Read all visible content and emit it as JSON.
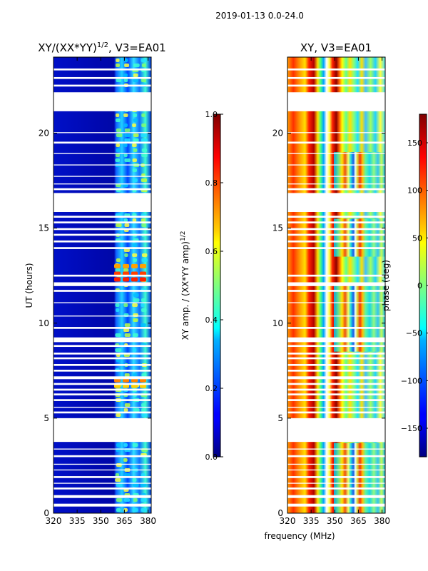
{
  "figure": {
    "suptitle": "2019-01-13 0.0-24.0",
    "shared_xlabel": "frequency (MHz)"
  },
  "chart_data": [
    {
      "type": "heatmap",
      "title": "XY/(XX*YY)",
      "title_sup": "1/2",
      "title_suffix": ", V3=EA01",
      "ylabel": "UT (hours)",
      "xlim": [
        320,
        382
      ],
      "ylim": [
        0,
        24
      ],
      "xticks": [
        "320",
        "335",
        "350",
        "365",
        "380"
      ],
      "yticks": [
        "0",
        "5",
        "10",
        "15",
        "20"
      ],
      "colorbar": {
        "label": "XY amp. / (XX*YY amp)",
        "label_sup": "1/2",
        "range": [
          0.0,
          1.0
        ],
        "ticks": [
          "0.0",
          "0.2",
          "0.4",
          "0.6",
          "0.8",
          "1.0"
        ]
      }
    },
    {
      "type": "heatmap",
      "title": "XY, V3=EA01",
      "ylabel": "",
      "xlim": [
        320,
        382
      ],
      "ylim": [
        0,
        24
      ],
      "xticks": [
        "320",
        "335",
        "350",
        "365",
        "380"
      ],
      "yticks": [
        "0",
        "5",
        "10",
        "15",
        "20"
      ],
      "colorbar": {
        "label": "phase (deg)",
        "range": [
          -180,
          180
        ],
        "ticks": [
          "−150",
          "−100",
          "−50",
          "0",
          "50",
          "100",
          "150"
        ]
      }
    }
  ],
  "flagged_ut_hours": [
    [
      0.35,
      0.5
    ],
    [
      0.8,
      0.95
    ],
    [
      1.25,
      1.35
    ],
    [
      1.55,
      1.6
    ],
    [
      1.85,
      1.95
    ],
    [
      2.25,
      2.3
    ],
    [
      2.55,
      2.6
    ],
    [
      2.95,
      3.05
    ],
    [
      3.35,
      3.4
    ],
    [
      3.75,
      5.0
    ],
    [
      5.25,
      5.35
    ],
    [
      5.55,
      5.6
    ],
    [
      5.9,
      6.0
    ],
    [
      6.2,
      6.3
    ],
    [
      6.45,
      6.55
    ],
    [
      6.75,
      6.85
    ],
    [
      7.05,
      7.2
    ],
    [
      7.45,
      7.55
    ],
    [
      7.75,
      7.85
    ],
    [
      8.1,
      8.2
    ],
    [
      8.35,
      8.45
    ],
    [
      8.75,
      8.85
    ],
    [
      9.0,
      9.25
    ],
    [
      9.7,
      9.8
    ],
    [
      10.35,
      10.4
    ],
    [
      11.05,
      11.1
    ],
    [
      11.65,
      11.75
    ],
    [
      11.95,
      12.15
    ],
    [
      12.45,
      12.55
    ],
    [
      13.9,
      14.0
    ],
    [
      14.25,
      14.35
    ],
    [
      14.6,
      14.7
    ],
    [
      14.9,
      15.0
    ],
    [
      15.25,
      15.35
    ],
    [
      15.55,
      15.65
    ],
    [
      15.85,
      16.85
    ],
    [
      17.0,
      17.1
    ],
    [
      17.3,
      17.35
    ],
    [
      17.7,
      17.75
    ],
    [
      18.3,
      18.35
    ],
    [
      18.9,
      18.95
    ],
    [
      19.45,
      19.55
    ],
    [
      20.0,
      20.05
    ],
    [
      21.15,
      22.15
    ],
    [
      22.45,
      22.55
    ],
    [
      22.85,
      22.95
    ],
    [
      23.3,
      23.4
    ]
  ]
}
